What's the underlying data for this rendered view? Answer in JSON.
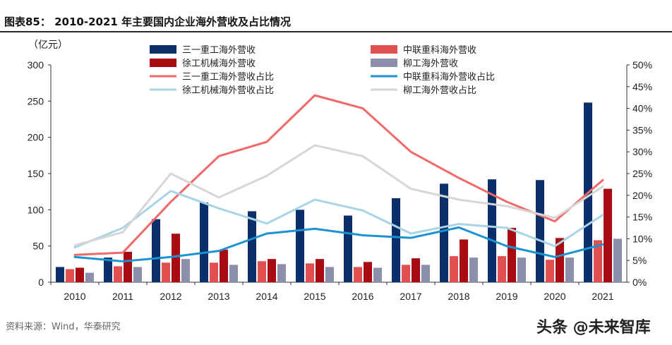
{
  "title": "图表85： 2010-2021 年主要国内企业海外营收及占比情况",
  "source": "资料来源：Wind，华泰研究",
  "watermark": "头条 @未来智库",
  "chart_data": {
    "type": "bar",
    "title": "2010-2021 年主要国内企业海外营收及占比情况",
    "ylabel": "（亿元）",
    "ylim": [
      0,
      300
    ],
    "y_ticks": [
      "0",
      "50",
      "100",
      "150",
      "200",
      "250",
      "300"
    ],
    "y2lim": [
      0,
      50
    ],
    "y2_ticks": [
      "0%",
      "5%",
      "10%",
      "15%",
      "20%",
      "25%",
      "30%",
      "35%",
      "40%",
      "45%",
      "50%"
    ],
    "categories": [
      "2010",
      "2011",
      "2012",
      "2013",
      "2014",
      "2015",
      "2016",
      "2017",
      "2018",
      "2019",
      "2020",
      "2021"
    ],
    "series": [
      {
        "name": "三一重工海外营收",
        "kind": "bar",
        "color": "#0b2f6b",
        "values": [
          21,
          34,
          87,
          110,
          98,
          100,
          92,
          116,
          136,
          142,
          141,
          248
        ]
      },
      {
        "name": "中联重科海外营收",
        "kind": "bar",
        "color": "#e05050",
        "values": [
          18,
          22,
          27,
          27,
          29,
          26,
          21,
          24,
          36,
          36,
          31,
          58
        ]
      },
      {
        "name": "徐工机械海外营收",
        "kind": "bar",
        "color": "#a80c12",
        "values": [
          20,
          42,
          67,
          45,
          32,
          32,
          28,
          33,
          59,
          75,
          61,
          129
        ]
      },
      {
        "name": "柳工海外营收",
        "kind": "bar",
        "color": "#8c8fab",
        "values": [
          13,
          21,
          32,
          24,
          25,
          21,
          20,
          24,
          34,
          34,
          34,
          60
        ]
      },
      {
        "name": "三一重工海外营收占比",
        "kind": "line",
        "axis": "right",
        "color": "#f06868",
        "values": [
          6.3,
          6.8,
          18.5,
          29.0,
          32.3,
          43.0,
          40.0,
          30.0,
          24.0,
          18.5,
          14.0,
          23.5
        ]
      },
      {
        "name": "中联重科海外营收占比",
        "kind": "line",
        "axis": "right",
        "color": "#1a93d0",
        "values": [
          5.8,
          4.8,
          5.8,
          7.2,
          11.2,
          12.3,
          10.8,
          10.2,
          12.6,
          8.3,
          5.8,
          8.7
        ]
      },
      {
        "name": "徐工机械海外营收占比",
        "kind": "line",
        "axis": "right",
        "color": "#a8d4e6",
        "values": [
          8.0,
          12.5,
          21.0,
          17.0,
          13.5,
          19.0,
          16.5,
          11.2,
          13.4,
          12.5,
          8.3,
          15.5
        ]
      },
      {
        "name": "柳工海外营收占比",
        "kind": "line",
        "axis": "right",
        "color": "#d6d6d6",
        "values": [
          8.5,
          11.5,
          25.0,
          19.5,
          24.5,
          31.5,
          29.0,
          21.5,
          19.0,
          17.5,
          14.8,
          22.0
        ]
      }
    ]
  }
}
